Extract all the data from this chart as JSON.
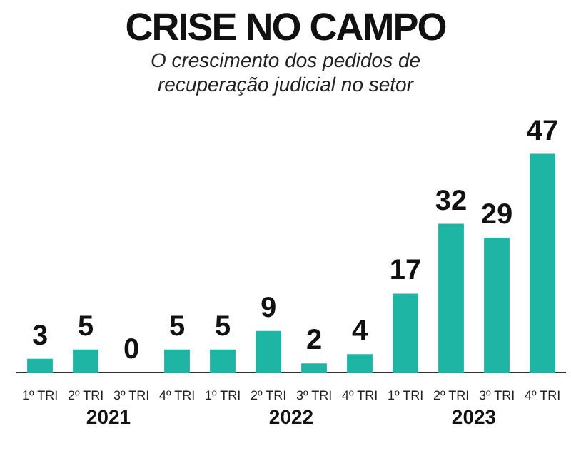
{
  "chart_data": {
    "type": "bar",
    "title": "CRISE NO CAMPO",
    "subtitle": "O crescimento dos pedidos de recuperação judicial no setor",
    "categories": [
      "1º TRI",
      "2º TRI",
      "3º TRI",
      "4º TRI",
      "1º TRI",
      "2º TRI",
      "3º TRI",
      "4º TRI",
      "1º TRI",
      "2º TRI",
      "3º TRI",
      "4º TRI"
    ],
    "values": [
      3,
      5,
      0,
      5,
      5,
      9,
      2,
      4,
      17,
      32,
      29,
      47
    ],
    "color": "#1fb5a5",
    "relative": false,
    "data_labels": true,
    "grid": false,
    "legend": false,
    "annotations": [
      "2021",
      "2022",
      "2023"
    ]
  }
}
